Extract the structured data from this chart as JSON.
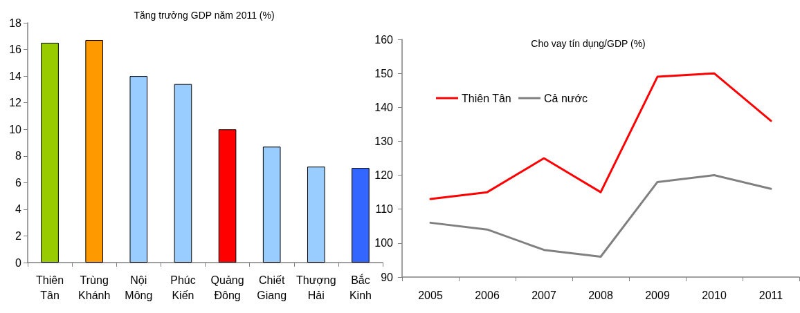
{
  "chart_data": [
    {
      "type": "bar",
      "title": "Tăng trưởng GDP năm 2011 (%)",
      "categories": [
        "Thiên Tân",
        "Trùng Khánh",
        "Nội Mông",
        "Phúc Kiến",
        "Quảng Đông",
        "Chiết Giang",
        "Thượng Hải",
        "Bắc Kinh"
      ],
      "values": [
        16.5,
        16.7,
        14.0,
        13.4,
        10.0,
        8.7,
        7.2,
        7.1
      ],
      "colors": [
        "#99cc00",
        "#ff9900",
        "#99ccff",
        "#99ccff",
        "#ff0000",
        "#99ccff",
        "#99ccff",
        "#3366ff"
      ],
      "ylim": [
        0,
        18
      ],
      "yticks": [
        0,
        2,
        4,
        6,
        8,
        10,
        12,
        14,
        16,
        18
      ],
      "grid": false,
      "legend": false
    },
    {
      "type": "line",
      "title": "Cho vay tín dụng/GDP (%)",
      "categories": [
        "2005",
        "2006",
        "2007",
        "2008",
        "2009",
        "2010",
        "2011"
      ],
      "series": [
        {
          "name": "Thiên Tân",
          "color": "#ff0000",
          "values": [
            113,
            115,
            125,
            115,
            149,
            150,
            136
          ]
        },
        {
          "name": "Cả nước",
          "color": "#808080",
          "values": [
            106,
            104,
            98,
            96,
            118,
            120,
            116
          ]
        }
      ],
      "ylim": [
        90,
        160
      ],
      "yticks": [
        90,
        100,
        110,
        120,
        130,
        140,
        150,
        160
      ],
      "grid": false,
      "legend": "top left",
      "marker": "none",
      "line_style": "solid"
    }
  ]
}
